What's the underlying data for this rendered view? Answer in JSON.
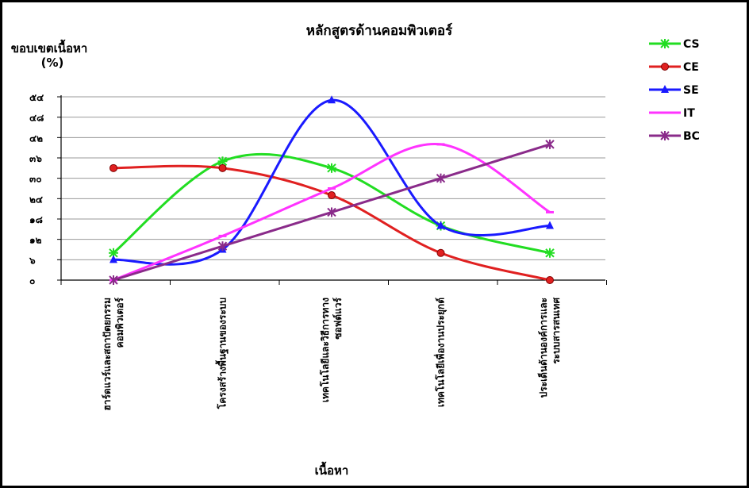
{
  "chart_data": {
    "type": "line",
    "title": "หลักสูตรด้านคอมพิวเตอร์",
    "ylabel_line1": "ขอบเขตเนื้อหา",
    "ylabel_line2": "(%)",
    "xlabel": "เนื้อหา",
    "categories": [
      "ฮาร์ดแวร์และสถาปัตยกรรม คอมพิวเตอร์",
      "โครงสร้างพื้นฐานของระบบ",
      "เทคโนโลยีและวิธีการทาง ซอฟต์แวร์",
      "เทคโนโลยีเพื่องานประยุกต์",
      "ประเด็นด้านองค์การและ ระบบสารสนเทศ"
    ],
    "y_ticks": [
      "๐",
      "๖",
      "๑๒",
      "๑๘",
      "๒๔",
      "๓๐",
      "๓๖",
      "๔๒",
      "๔๘",
      "๕๔"
    ],
    "ylim": [
      0,
      54
    ],
    "grid": true,
    "legend_position": "right",
    "series": [
      {
        "name": "CS",
        "values": [
          8,
          35,
          33,
          16,
          8
        ],
        "color": "#22dd22",
        "marker": "asterisk-plus"
      },
      {
        "name": "CE",
        "values": [
          33,
          33,
          25,
          8,
          0
        ],
        "color": "#e02020",
        "marker": "circle"
      },
      {
        "name": "SE",
        "values": [
          6,
          9,
          53,
          16,
          16
        ],
        "color": "#1a1aff",
        "marker": "triangle"
      },
      {
        "name": "IT",
        "values": [
          0,
          13,
          27,
          40,
          20
        ],
        "color": "#ff33ff",
        "marker": "dash"
      },
      {
        "name": "BC",
        "values": [
          0,
          10,
          20,
          30,
          40
        ],
        "color": "#8a2b8a",
        "marker": "asterisk"
      }
    ]
  }
}
